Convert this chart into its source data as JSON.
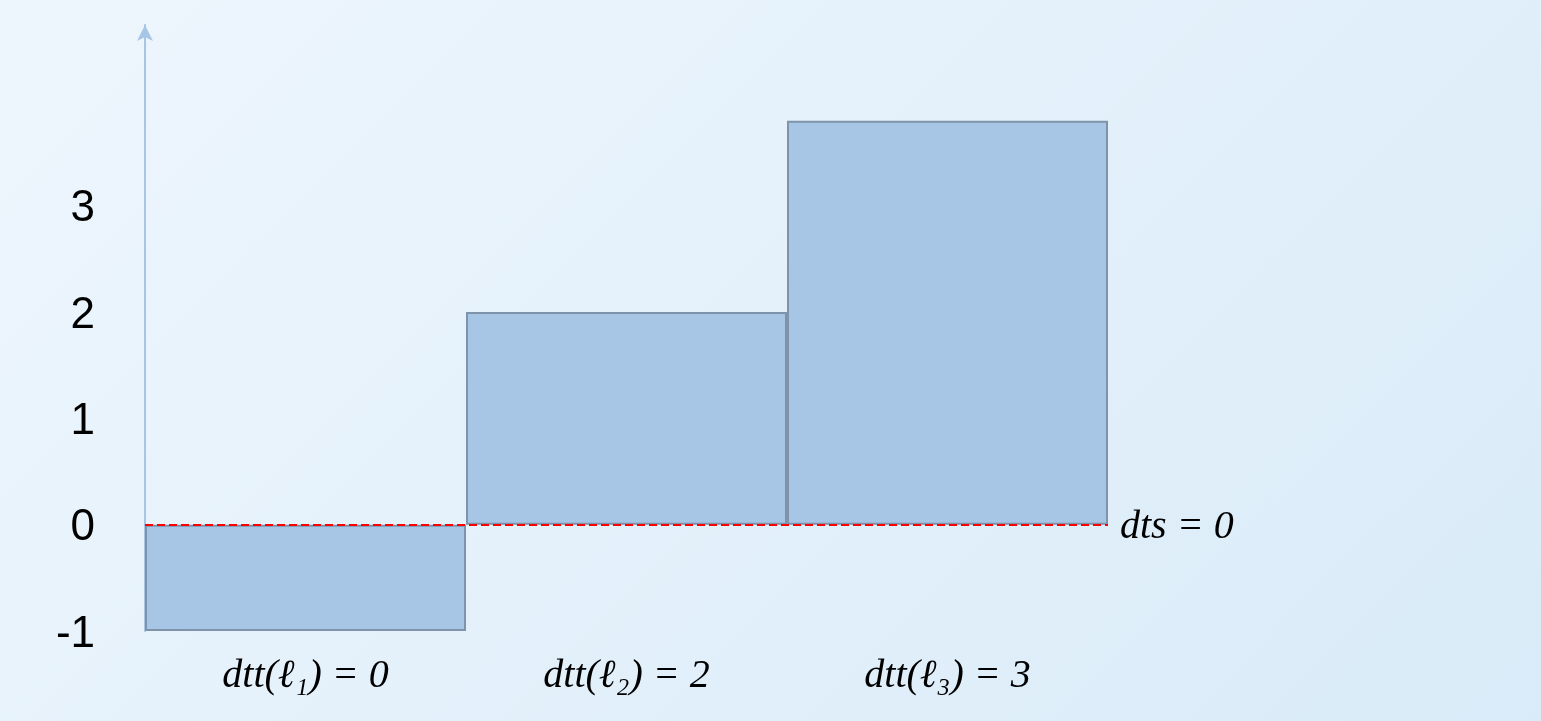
{
  "chart_data": {
    "type": "bar",
    "categories": [
      "dtt(ℓ₁) = 0",
      "dtt(ℓ₂) = 2",
      "dtt(ℓ₃) = 3"
    ],
    "values": [
      -1,
      2,
      3.8
    ],
    "color": "#a7c5e4",
    "ylim": [
      -1,
      4.7
    ],
    "yticks": [
      -1,
      0,
      1,
      2,
      3
    ],
    "grid": false,
    "ref_lines": [
      {
        "axis": "y",
        "value": 0,
        "label": "dts = 0",
        "color": "#ff0000",
        "line_style": "dashed"
      }
    ]
  }
}
